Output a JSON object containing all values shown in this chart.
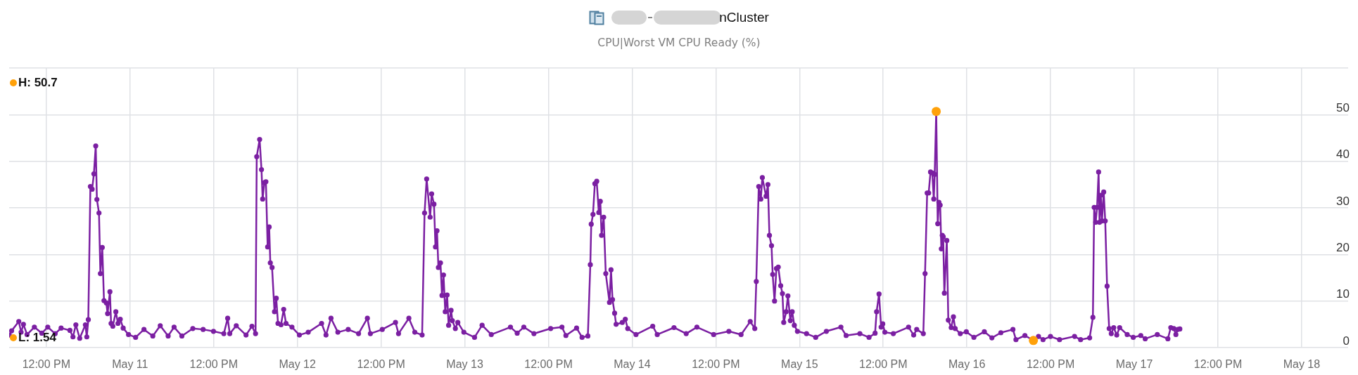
{
  "chart_data": {
    "type": "line",
    "title": "nCluster",
    "subtitle": "CPU|Worst VM CPU Ready (%)",
    "marker": "circle",
    "line_style": "solid",
    "grid": true,
    "xlim": [
      "--05-10T06:40",
      "--05-18T06:40"
    ],
    "xticks": [
      {
        "value": "--05-10T12:00",
        "label": "12:00 PM"
      },
      {
        "value": "--05-11T00:00",
        "label": "May 11"
      },
      {
        "value": "--05-11T12:00",
        "label": "12:00 PM"
      },
      {
        "value": "--05-12T00:00",
        "label": "May 12"
      },
      {
        "value": "--05-12T12:00",
        "label": "12:00 PM"
      },
      {
        "value": "--05-13T00:00",
        "label": "May 13"
      },
      {
        "value": "--05-13T12:00",
        "label": "12:00 PM"
      },
      {
        "value": "--05-14T00:00",
        "label": "May 14"
      },
      {
        "value": "--05-14T12:00",
        "label": "12:00 PM"
      },
      {
        "value": "--05-15T00:00",
        "label": "May 15"
      },
      {
        "value": "--05-15T12:00",
        "label": "12:00 PM"
      },
      {
        "value": "--05-16T00:00",
        "label": "May 16"
      },
      {
        "value": "--05-16T12:00",
        "label": "12:00 PM"
      },
      {
        "value": "--05-17T00:00",
        "label": "May 17"
      },
      {
        "value": "--05-17T12:00",
        "label": "12:00 PM"
      },
      {
        "value": "--05-18T00:00",
        "label": "May 18"
      }
    ],
    "ylim": [
      0,
      60
    ],
    "yticks": [
      0,
      10,
      20,
      30,
      40,
      50,
      {
        "value": 60,
        "label": null
      }
    ],
    "annotations": [
      "H: 50.7",
      "L: 1.54"
    ],
    "x": [
      "--05-10T06:41",
      "--05-10T07:01",
      "--05-10T08:03",
      "--05-10T08:23",
      "--05-10T08:43",
      "--05-10T09:14",
      "--05-10T10:17",
      "--05-10T11:21",
      "--05-10T12:12",
      "--05-10T13:16",
      "--05-10T14:07",
      "--05-10T15:23",
      "--05-10T15:49",
      "--05-10T16:14",
      "--05-10T16:47",
      "--05-10T17:36",
      "--05-10T17:48",
      "--05-10T18:01",
      "--05-10T18:19",
      "--05-10T18:34",
      "--05-10T18:49",
      "--05-10T19:05",
      "--05-10T19:15",
      "--05-10T19:33",
      "--05-10T19:45",
      "--05-10T20:01",
      "--05-10T20:16",
      "--05-10T20:36",
      "--05-10T20:47",
      "--05-10T21:07",
      "--05-10T21:17",
      "--05-10T21:32",
      "--05-10T21:58",
      "--05-10T22:16",
      "--05-10T22:36",
      "--05-10T23:01",
      "--05-10T23:47",
      "--05-11T00:48",
      "--05-11T02:00",
      "--05-11T03:16",
      "--05-11T04:20",
      "--05-11T05:28",
      "--05-11T06:19",
      "--05-11T07:26",
      "--05-11T09:00",
      "--05-11T10:29",
      "--05-11T11:58",
      "--05-11T13:27",
      "--05-11T14:00",
      "--05-11T14:18",
      "--05-11T15:14",
      "--05-11T16:38",
      "--05-11T17:29",
      "--05-11T18:00",
      "--05-11T18:10",
      "--05-11T18:35",
      "--05-11T18:51",
      "--05-11T19:01",
      "--05-11T19:16",
      "--05-11T19:29",
      "--05-11T19:44",
      "--05-11T19:57",
      "--05-11T20:07",
      "--05-11T20:22",
      "--05-11T20:43",
      "--05-11T20:58",
      "--05-11T21:13",
      "--05-11T21:39",
      "--05-11T22:02",
      "--05-11T22:22",
      "--05-11T23:13",
      "--05-12T00:17",
      "--05-12T01:33",
      "--05-12T03:28",
      "--05-12T04:06",
      "--05-12T04:49",
      "--05-12T05:48",
      "--05-12T07:17",
      "--05-12T08:46",
      "--05-12T10:02",
      "--05-12T10:28",
      "--05-12T12:10",
      "--05-12T14:04",
      "--05-12T14:30",
      "--05-12T15:59",
      "--05-12T16:50",
      "--05-12T17:53",
      "--05-12T18:14",
      "--05-12T18:32",
      "--05-12T19:02",
      "--05-12T19:15",
      "--05-12T19:35",
      "--05-12T19:48",
      "--05-12T20:01",
      "--05-12T20:13",
      "--05-12T20:31",
      "--05-12T20:44",
      "--05-12T20:57",
      "--05-12T21:12",
      "--05-12T21:28",
      "--05-12T21:41",
      "--05-12T22:02",
      "--05-12T22:13",
      "--05-12T22:39",
      "--05-12T23:00",
      "--05-12T23:52",
      "--05-13T01:24",
      "--05-13T02:29",
      "--05-13T03:48",
      "--05-13T06:33",
      "--05-13T07:31",
      "--05-13T08:28",
      "--05-13T09:55",
      "--05-13T12:19",
      "--05-13T13:56",
      "--05-13T14:30",
      "--05-13T16:02",
      "--05-13T16:49",
      "--05-13T17:39",
      "--05-13T18:00",
      "--05-13T18:08",
      "--05-13T18:23",
      "--05-13T18:39",
      "--05-13T18:55",
      "--05-13T19:13",
      "--05-13T19:26",
      "--05-13T19:37",
      "--05-13T19:55",
      "--05-13T20:13",
      "--05-13T20:45",
      "--05-13T20:58",
      "--05-13T21:11",
      "--05-13T21:29",
      "--05-13T21:42",
      "--05-13T22:35",
      "--05-13T23:01",
      "--05-13T23:22",
      "--05-14T00:33",
      "--05-14T02:57",
      "--05-14T03:36",
      "--05-14T06:00",
      "--05-14T07:45",
      "--05-14T09:17",
      "--05-14T11:41",
      "--05-14T13:52",
      "--05-14T15:37",
      "--05-14T16:56",
      "--05-14T17:35",
      "--05-14T17:48",
      "--05-14T18:09",
      "--05-14T18:27",
      "--05-14T18:40",
      "--05-14T19:12",
      "--05-14T19:28",
      "--05-14T19:41",
      "--05-14T19:59",
      "--05-14T20:09",
      "--05-14T20:25",
      "--05-14T20:41",
      "--05-14T20:57",
      "--05-14T21:18",
      "--05-14T21:33",
      "--05-14T21:44",
      "--05-14T22:05",
      "--05-14T22:20",
      "--05-14T22:41",
      "--05-14T22:57",
      "--05-14T23:15",
      "--05-14T23:42",
      "--05-15T01:00",
      "--05-15T02:19",
      "--05-15T03:51",
      "--05-15T05:56",
      "--05-15T06:41",
      "--05-15T08:39",
      "--05-15T09:58",
      "--05-15T10:50",
      "--05-15T11:03",
      "--05-15T11:24",
      "--05-15T11:42",
      "--05-15T11:56",
      "--05-15T12:14",
      "--05-15T13:27",
      "--05-15T15:38",
      "--05-15T16:22",
      "--05-15T16:48",
      "--05-15T17:45",
      "--05-15T18:00",
      "--05-15T18:18",
      "--05-15T18:31",
      "--05-15T18:47",
      "--05-15T19:02",
      "--05-15T19:15",
      "--05-15T19:23",
      "--05-15T19:36",
      "--05-15T19:49",
      "--05-15T19:59",
      "--05-15T20:10",
      "--05-15T20:20",
      "--05-15T20:28",
      "--05-15T20:36",
      "--05-15T20:46",
      "--05-15T21:07",
      "--05-15T21:20",
      "--05-15T21:45",
      "--05-15T22:04",
      "--05-15T22:19",
      "--05-15T23:03",
      "--05-15T23:55",
      "--05-16T01:00",
      "--05-16T02:30",
      "--05-16T03:35",
      "--05-16T04:52",
      "--05-16T06:36",
      "--05-16T07:02",
      "--05-16T08:19",
      "--05-16T09:32",
      "--05-16T10:16",
      "--05-16T10:55",
      "--05-16T11:59",
      "--05-16T13:17",
      "--05-16T15:26",
      "--05-16T16:18",
      "--05-16T17:36",
      "--05-16T18:04",
      "--05-16T18:15",
      "--05-16T18:28",
      "--05-16T18:40",
      "--05-16T18:53",
      "--05-16T19:01",
      "--05-16T19:12",
      "--05-16T19:22",
      "--05-16T19:37",
      "--05-16T19:50",
      "--05-16T20:06",
      "--05-16T20:24",
      "--05-16T20:42",
      "--05-16T21:03",
      "--05-16T21:29",
      "--05-16T21:54",
      "--05-16T22:59",
      "--05-16T23:51",
      "--05-17T00:56",
      "--05-17T01:34",
      "--05-17T03:18",
      "--05-17T04:49",
      "--05-17T05:14",
      "--05-17T05:40",
      "--05-17T05:58",
      "--05-17T06:14",
      "--05-17T06:32"
    ],
    "series": [
      {
        "color": "#7b1fa2",
        "values": [
          2.7,
          3.6,
          5.6,
          3.3,
          5.0,
          2.8,
          4.4,
          3.1,
          4.4,
          3.0,
          4.2,
          3.7,
          2.3,
          4.9,
          2.0,
          4.9,
          2.3,
          6.0,
          34.6,
          34.0,
          37.3,
          43.3,
          31.8,
          28.9,
          15.9,
          21.5,
          10.1,
          9.6,
          7.3,
          12.0,
          5.2,
          4.6,
          7.7,
          5.2,
          6.1,
          4.2,
          2.8,
          2.2,
          3.9,
          2.5,
          4.7,
          2.5,
          4.4,
          2.5,
          4.1,
          3.9,
          3.5,
          3.0,
          6.3,
          3.0,
          4.7,
          2.7,
          4.6,
          3.0,
          41.0,
          44.7,
          38.2,
          31.9,
          35.4,
          35.6,
          21.6,
          25.9,
          18.2,
          17.2,
          7.7,
          10.6,
          5.2,
          4.9,
          8.2,
          5.2,
          4.4,
          2.7,
          3.3,
          5.2,
          2.7,
          6.3,
          3.3,
          3.9,
          3.0,
          6.3,
          3.0,
          3.9,
          5.4,
          3.0,
          6.3,
          3.3,
          2.7,
          28.9,
          36.2,
          28.0,
          33.0,
          30.8,
          21.6,
          25.1,
          17.2,
          18.2,
          11.2,
          15.6,
          7.7,
          11.3,
          4.8,
          8.0,
          5.8,
          4.1,
          5.4,
          3.3,
          2.2,
          4.8,
          2.8,
          4.4,
          3.1,
          4.4,
          3.0,
          4.1,
          4.4,
          2.6,
          4.2,
          2.2,
          2.5,
          17.8,
          26.5,
          28.6,
          35.2,
          35.7,
          29.0,
          31.4,
          24.1,
          28.0,
          15.9,
          9.7,
          16.7,
          10.3,
          7.4,
          5.0,
          5.4,
          6.1,
          4.1,
          2.8,
          4.6,
          2.8,
          4.3,
          3.0,
          4.4,
          2.8,
          3.5,
          2.8,
          5.6,
          4.1,
          14.2,
          34.6,
          31.9,
          36.5,
          32.5,
          35.0,
          24.1,
          21.9,
          15.7,
          10.0,
          17.0,
          17.3,
          13.3,
          11.6,
          5.4,
          7.7,
          11.1,
          5.8,
          7.7,
          4.8,
          3.5,
          3.0,
          2.2,
          3.5,
          4.4,
          2.6,
          3.0,
          2.2,
          3.1,
          7.7,
          11.5,
          4.4,
          5.1,
          3.3,
          3.0,
          4.4,
          2.7,
          3.9,
          3.0,
          15.9,
          33.2,
          33.2,
          37.7,
          37.5,
          31.9,
          37.2,
          50.7,
          26.6,
          31.2,
          30.6,
          21.2,
          24.1,
          23.8,
          11.7,
          23.0,
          5.9,
          4.3,
          6.6,
          4.1,
          3.0,
          3.4,
          2.2,
          3.4,
          2.1,
          3.2,
          3.9,
          1.7,
          2.6,
          1.54,
          2.4,
          1.7,
          2.4,
          1.7,
          2.4,
          1.7,
          2.1,
          6.5,
          30.1,
          26.9,
          30.1,
          37.7,
          26.9,
          32.7,
          27.2,
          33.4,
          27.2,
          13.2,
          4.1,
          3.0,
          4.3,
          2.7,
          4.3,
          2.8,
          2.2,
          2.6,
          1.9,
          2.8,
          1.9,
          4.3,
          4.1,
          2.8,
          3.9,
          4.0
        ]
      },
      {
        "type": "scatter",
        "color": "#ffa10a",
        "x": [
          "--05-15T19:36",
          "--05-16T09:32"
        ],
        "values": [
          50.7,
          1.54
        ]
      }
    ]
  }
}
